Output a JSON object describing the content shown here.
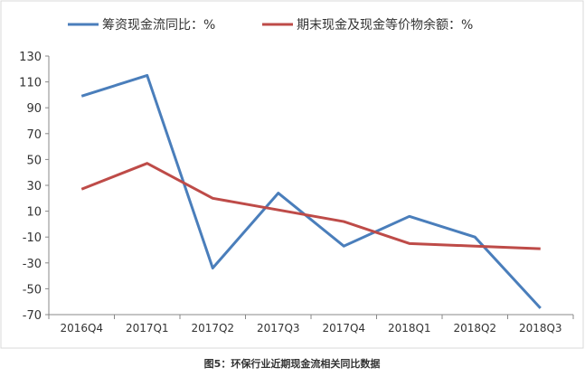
{
  "chart_data": {
    "type": "line",
    "title": "",
    "caption": "图5：环保行业近期现金流相关同比数据",
    "xlabel": "",
    "ylabel": "",
    "categories": [
      "2016Q4",
      "2017Q1",
      "2017Q2",
      "2017Q3",
      "2017Q4",
      "2018Q1",
      "2018Q2",
      "2018Q3"
    ],
    "ylim": [
      -70,
      130
    ],
    "yticks": [
      130,
      110,
      90,
      70,
      50,
      30,
      10,
      -10,
      -30,
      -50,
      -70
    ],
    "grid": false,
    "legend_position": "top",
    "series": [
      {
        "name": "筹资现金流同比：%",
        "color": "#4a7ebb",
        "values": [
          99,
          115,
          -34,
          24,
          -17,
          6,
          -10,
          -65
        ]
      },
      {
        "name": "期末现金及现金等价物余额：%",
        "color": "#be4b48",
        "values": [
          27,
          47,
          20,
          11,
          2,
          -15,
          -17,
          -19
        ]
      }
    ]
  }
}
